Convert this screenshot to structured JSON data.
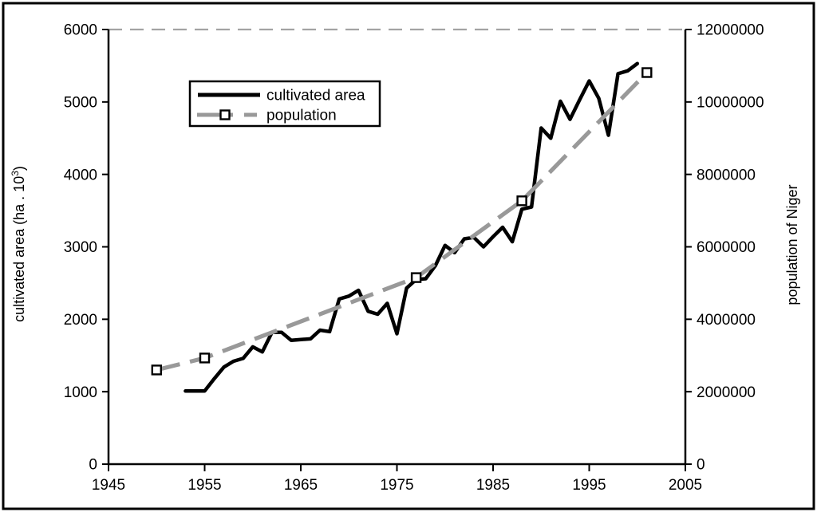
{
  "figure": {
    "background": "#ffffff",
    "border_color": "#000000"
  },
  "chart_data": {
    "type": "line",
    "title": "",
    "grid": "off",
    "legend_position": "upper-left-inside",
    "x_axis": {
      "label": "",
      "range": [
        1945,
        2005
      ],
      "ticks": [
        1945,
        1955,
        1965,
        1975,
        1985,
        1995,
        2005
      ]
    },
    "y_left_axis": {
      "label": "cultivated area (ha . 10³)",
      "label_main": "cultivated area (ha . 10",
      "label_sup": "3",
      "label_close": ")",
      "range": [
        0,
        6000
      ],
      "ticks": [
        0,
        1000,
        2000,
        3000,
        4000,
        5000,
        6000
      ]
    },
    "y_right_axis": {
      "label": "population of Niger",
      "range": [
        0,
        12000000
      ],
      "ticks": [
        0,
        2000000,
        4000000,
        6000000,
        8000000,
        10000000,
        12000000
      ]
    },
    "reference_line": {
      "axis": "left",
      "value": 6000,
      "style": "dashed",
      "color": "#a3a3a3"
    },
    "series": [
      {
        "name": "cultivated area",
        "axis": "left",
        "style": "solid",
        "color": "#000000",
        "marker": "none",
        "x": [
          1953,
          1954,
          1955,
          1956,
          1957,
          1958,
          1959,
          1960,
          1961,
          1962,
          1963,
          1964,
          1965,
          1966,
          1967,
          1968,
          1969,
          1970,
          1971,
          1972,
          1973,
          1974,
          1975,
          1976,
          1977,
          1978,
          1979,
          1980,
          1981,
          1982,
          1983,
          1984,
          1985,
          1986,
          1987,
          1988,
          1989,
          1990,
          1991,
          1992,
          1993,
          1994,
          1995,
          1996,
          1997,
          1998,
          1999,
          2000
        ],
        "values": [
          1010,
          1010,
          1010,
          1180,
          1340,
          1420,
          1460,
          1620,
          1550,
          1820,
          1820,
          1710,
          1720,
          1730,
          1850,
          1830,
          2280,
          2320,
          2400,
          2110,
          2070,
          2220,
          1800,
          2430,
          2550,
          2560,
          2740,
          3020,
          2920,
          3110,
          3130,
          3000,
          3140,
          3270,
          3070,
          3520,
          3550,
          4640,
          4500,
          5010,
          4760,
          5030,
          5290,
          5050,
          4540,
          5390,
          5430,
          5530
        ]
      },
      {
        "name": "population",
        "axis": "right",
        "style": "dashed",
        "color": "#999999",
        "marker": "open-square",
        "x": [
          1950,
          1955,
          1977,
          1988,
          2001
        ],
        "values": [
          2600000,
          2930000,
          5150000,
          7270000,
          10810000
        ]
      }
    ]
  }
}
